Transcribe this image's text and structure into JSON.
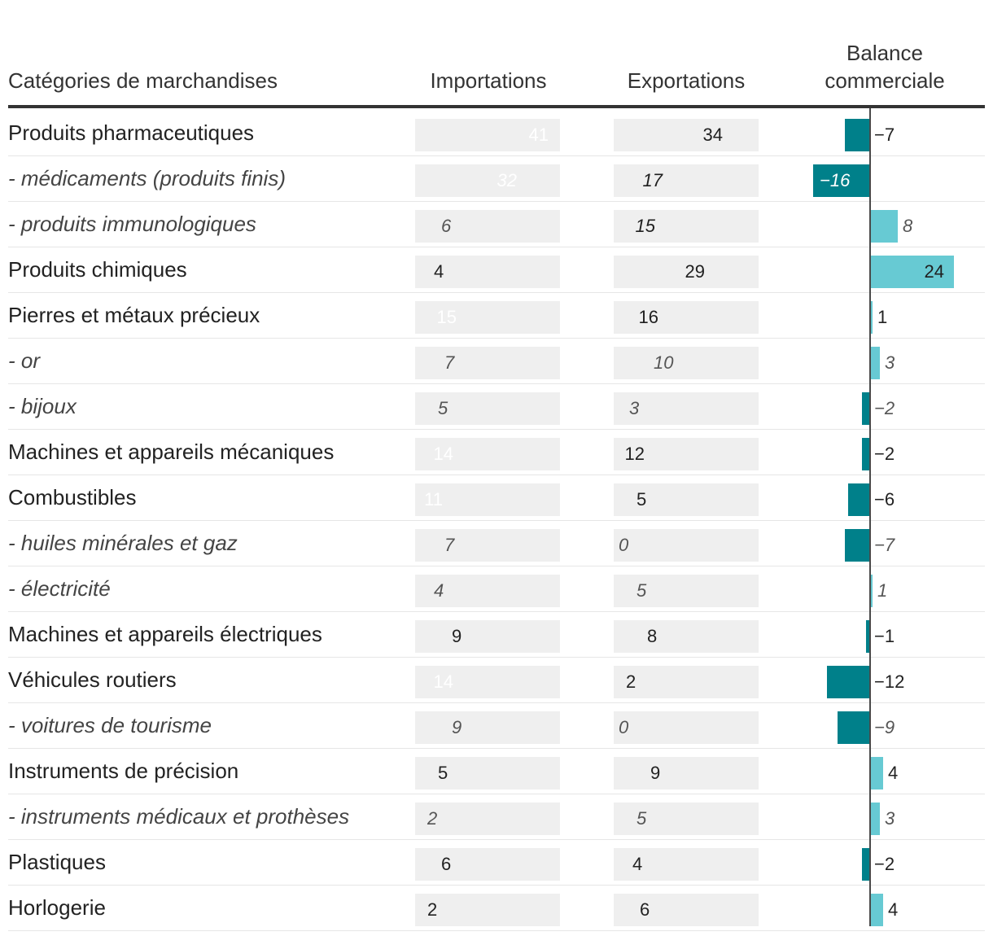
{
  "headers": {
    "category": "Catégories de marchandises",
    "imports": "Importations",
    "exports": "Exportations",
    "balance_line1": "Balance",
    "balance_line2": "commerciale"
  },
  "colors": {
    "imports": "#00808a",
    "exports": "#67cad3",
    "track": "#efefef",
    "balance_negative": "#00808a",
    "balance_positive": "#67cad3"
  },
  "chart_data": {
    "type": "table",
    "title": "",
    "columns": [
      "Catégories de marchandises",
      "Importations",
      "Exportations",
      "Balance commerciale"
    ],
    "bar_max": 41,
    "rows": [
      {
        "label": "Produits pharmaceutiques",
        "sub": false,
        "imports": 41,
        "exports": 34,
        "balance": -7,
        "balance_label": "−7"
      },
      {
        "label": "- médicaments (produits finis)",
        "sub": true,
        "imports": 32,
        "exports": 17,
        "balance": -16,
        "balance_label": "−16"
      },
      {
        "label": "- produits immunologiques",
        "sub": true,
        "imports": 6,
        "exports": 15,
        "balance": 8,
        "balance_label": "8"
      },
      {
        "label": "Produits chimiques",
        "sub": false,
        "imports": 4,
        "exports": 29,
        "balance": 24,
        "balance_label": "24"
      },
      {
        "label": "Pierres et métaux précieux",
        "sub": false,
        "imports": 15,
        "exports": 16,
        "balance": 1,
        "balance_label": "1"
      },
      {
        "label": "- or",
        "sub": true,
        "imports": 7,
        "exports": 10,
        "balance": 3,
        "balance_label": "3"
      },
      {
        "label": "- bijoux",
        "sub": true,
        "imports": 5,
        "exports": 3,
        "balance": -2,
        "balance_label": "−2"
      },
      {
        "label": "Machines et appareils mécaniques",
        "sub": false,
        "imports": 14,
        "exports": 12,
        "balance": -2,
        "balance_label": "−2"
      },
      {
        "label": "Combustibles",
        "sub": false,
        "imports": 11,
        "exports": 5,
        "balance": -6,
        "balance_label": "−6"
      },
      {
        "label": "- huiles minérales et gaz",
        "sub": true,
        "imports": 7,
        "exports": 0,
        "balance": -7,
        "balance_label": "−7"
      },
      {
        "label": "- électricité",
        "sub": true,
        "imports": 4,
        "exports": 5,
        "balance": 1,
        "balance_label": "1"
      },
      {
        "label": "Machines et appareils électriques",
        "sub": false,
        "imports": 9,
        "exports": 8,
        "balance": -1,
        "balance_label": "−1"
      },
      {
        "label": "Véhicules routiers",
        "sub": false,
        "imports": 14,
        "exports": 2,
        "balance": -12,
        "balance_label": "−12"
      },
      {
        "label": "- voitures de tourisme",
        "sub": true,
        "imports": 9,
        "exports": 0,
        "balance": -9,
        "balance_label": "−9"
      },
      {
        "label": "Instruments de précision",
        "sub": false,
        "imports": 5,
        "exports": 9,
        "balance": 4,
        "balance_label": "4"
      },
      {
        "label": "- instruments médicaux et prothèses",
        "sub": true,
        "imports": 2,
        "exports": 5,
        "balance": 3,
        "balance_label": "3"
      },
      {
        "label": "Plastiques",
        "sub": false,
        "imports": 6,
        "exports": 4,
        "balance": -2,
        "balance_label": "−2"
      },
      {
        "label": "Horlogerie",
        "sub": false,
        "imports": 2,
        "exports": 6,
        "balance": 4,
        "balance_label": "4"
      }
    ]
  }
}
